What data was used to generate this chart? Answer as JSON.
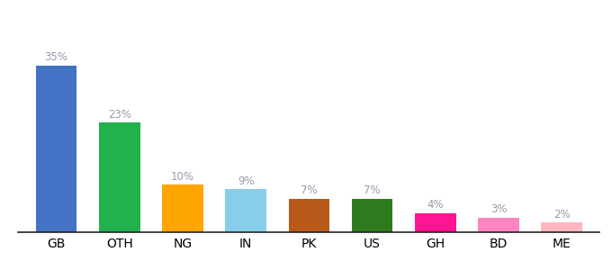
{
  "categories": [
    "GB",
    "OTH",
    "NG",
    "IN",
    "PK",
    "US",
    "GH",
    "BD",
    "ME"
  ],
  "values": [
    35,
    23,
    10,
    9,
    7,
    7,
    4,
    3,
    2
  ],
  "bar_colors": [
    "#4472C4",
    "#22B14C",
    "#FFA500",
    "#87CEEB",
    "#B8591A",
    "#2E7B1E",
    "#FF1493",
    "#FF85C0",
    "#FFB6C1"
  ],
  "ylim": [
    0,
    42
  ],
  "background_color": "#ffffff",
  "label_color": "#9999AA",
  "label_fontsize": 8.5,
  "tick_fontsize": 8.5,
  "bar_width": 0.65
}
